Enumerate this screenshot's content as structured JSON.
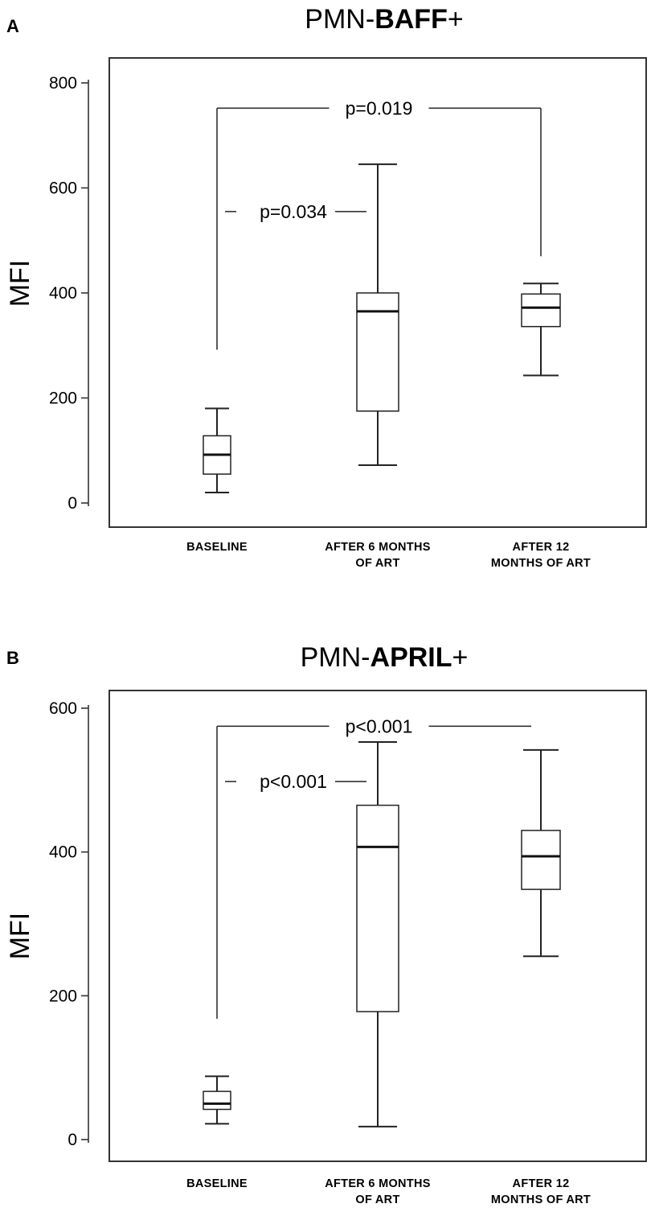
{
  "chart_data": [
    {
      "panel_label": "A",
      "type": "box",
      "title_prefix": "PMN-",
      "title_bold": "BAFF",
      "title_suffix": "+",
      "ylabel": "MFI",
      "ylim": [
        -40,
        820
      ],
      "yticks": [
        0,
        200,
        400,
        600,
        800
      ],
      "categories": [
        [
          "BASELINE"
        ],
        [
          "AFTER  6 MONTHS",
          "OF ART"
        ],
        [
          "AFTER  12",
          "MONTHS OF ART"
        ]
      ],
      "boxes": [
        {
          "min": 20,
          "q1": 55,
          "median": 92,
          "q3": 128,
          "max": 180
        },
        {
          "min": 72,
          "q1": 175,
          "median": 365,
          "q3": 400,
          "max": 645
        },
        {
          "min": 243,
          "q1": 336,
          "median": 372,
          "q3": 398,
          "max": 418
        }
      ],
      "annotations": [
        {
          "text": "p=0.019",
          "from": 0,
          "to": 2,
          "y": 752,
          "from_drop": 292,
          "to_drop": 470,
          "style": "bracket"
        },
        {
          "text": "p=0.034",
          "from": 0,
          "to": 1,
          "y": 555,
          "style": "dashed"
        }
      ]
    },
    {
      "panel_label": "B",
      "type": "box",
      "title_prefix": "PMN-",
      "title_bold": "APRIL",
      "title_suffix": "+",
      "ylabel": "MFI",
      "ylim": [
        -30,
        630
      ],
      "yticks": [
        0,
        200,
        400,
        600
      ],
      "categories": [
        [
          "BASELINE"
        ],
        [
          "AFTER  6 MONTHS",
          "OF ART"
        ],
        [
          "AFTER  12",
          "MONTHS OF ART"
        ]
      ],
      "boxes": [
        {
          "min": 22,
          "q1": 42,
          "median": 50,
          "q3": 67,
          "max": 88
        },
        {
          "min": 18,
          "q1": 178,
          "median": 407,
          "q3": 465,
          "max": 553
        },
        {
          "min": 255,
          "q1": 348,
          "median": 394,
          "q3": 430,
          "max": 542
        }
      ],
      "annotations": [
        {
          "text": "p<0.001",
          "from": 0,
          "to": 2,
          "y": 575,
          "from_drop": 168,
          "style": "open"
        },
        {
          "text": "p<0.001",
          "from": 0,
          "to": 1,
          "y": 498,
          "style": "dashed"
        }
      ]
    }
  ]
}
